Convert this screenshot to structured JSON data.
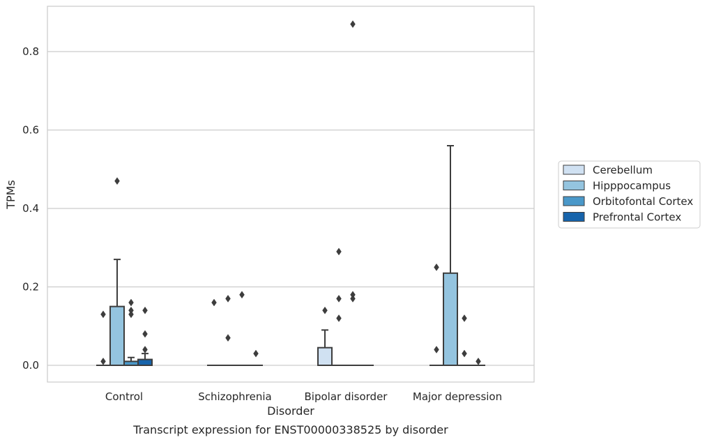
{
  "chart_data": {
    "type": "box",
    "xlabel": "Disorder",
    "ylabel": "TPMs",
    "caption": "Transcript expression for ENST00000338525 by disorder",
    "ylim": [
      -0.042,
      0.92
    ],
    "yticks": [
      "0.0",
      "0.2",
      "0.4",
      "0.6",
      "0.8"
    ],
    "grid": "horizontal",
    "legend_position": "right",
    "categories": [
      "Control",
      "Schizophrenia",
      "Bipolar disorder",
      "Major depression"
    ],
    "series": [
      {
        "name": "Cerebellum",
        "color": "#d0e1f2",
        "boxes": [
          {
            "q1": 0,
            "median": 0,
            "q3": 0,
            "whislo": 0,
            "whishi": 0,
            "fliers": [
              0.01,
              0.13
            ]
          },
          {
            "q1": 0,
            "median": 0,
            "q3": 0,
            "whislo": 0,
            "whishi": 0,
            "fliers": [
              0.16
            ]
          },
          {
            "q1": 0,
            "median": 0,
            "q3": 0.045,
            "whislo": 0,
            "whishi": 0.09,
            "fliers": [
              0.14
            ]
          },
          {
            "q1": 0,
            "median": 0,
            "q3": 0,
            "whislo": 0,
            "whishi": 0,
            "fliers": [
              0.04,
              0.25
            ]
          }
        ]
      },
      {
        "name": "Hipppocampus",
        "color": "#94c4df",
        "boxes": [
          {
            "q1": 0,
            "median": 0,
            "q3": 0.15,
            "whislo": 0,
            "whishi": 0.27,
            "fliers": [
              0.47
            ]
          },
          {
            "q1": 0,
            "median": 0,
            "q3": 0,
            "whislo": 0,
            "whishi": 0,
            "fliers": [
              0.07,
              0.17
            ]
          },
          {
            "q1": 0,
            "median": 0,
            "q3": 0,
            "whislo": 0,
            "whishi": 0,
            "fliers": [
              0.12,
              0.17,
              0.29
            ]
          },
          {
            "q1": 0,
            "median": 0,
            "q3": 0.235,
            "whislo": 0,
            "whishi": 0.56,
            "fliers": []
          }
        ]
      },
      {
        "name": "Orbitofontal Cortex",
        "color": "#4a98c9",
        "boxes": [
          {
            "q1": 0,
            "median": 0,
            "q3": 0.01,
            "whislo": 0,
            "whishi": 0.02,
            "fliers": [
              0.13,
              0.14,
              0.16
            ]
          },
          {
            "q1": 0,
            "median": 0,
            "q3": 0,
            "whislo": 0,
            "whishi": 0,
            "fliers": [
              0.18
            ]
          },
          {
            "q1": 0,
            "median": 0,
            "q3": 0,
            "whislo": 0,
            "whishi": 0,
            "fliers": [
              0.17,
              0.18,
              0.87
            ]
          },
          {
            "q1": 0,
            "median": 0,
            "q3": 0,
            "whislo": 0,
            "whishi": 0,
            "fliers": [
              0.03,
              0.12
            ]
          }
        ]
      },
      {
        "name": "Prefrontal Cortex",
        "color": "#1764ab",
        "boxes": [
          {
            "q1": 0,
            "median": 0,
            "q3": 0.015,
            "whislo": 0,
            "whishi": 0.03,
            "fliers": [
              0.04,
              0.08,
              0.14
            ]
          },
          {
            "q1": 0,
            "median": 0,
            "q3": 0,
            "whislo": 0,
            "whishi": 0,
            "fliers": [
              0.03
            ]
          },
          {
            "q1": 0,
            "median": 0,
            "q3": 0,
            "whislo": 0,
            "whishi": 0,
            "fliers": []
          },
          {
            "q1": 0,
            "median": 0,
            "q3": 0,
            "whislo": 0,
            "whishi": 0,
            "fliers": [
              0.01
            ]
          }
        ]
      }
    ]
  }
}
